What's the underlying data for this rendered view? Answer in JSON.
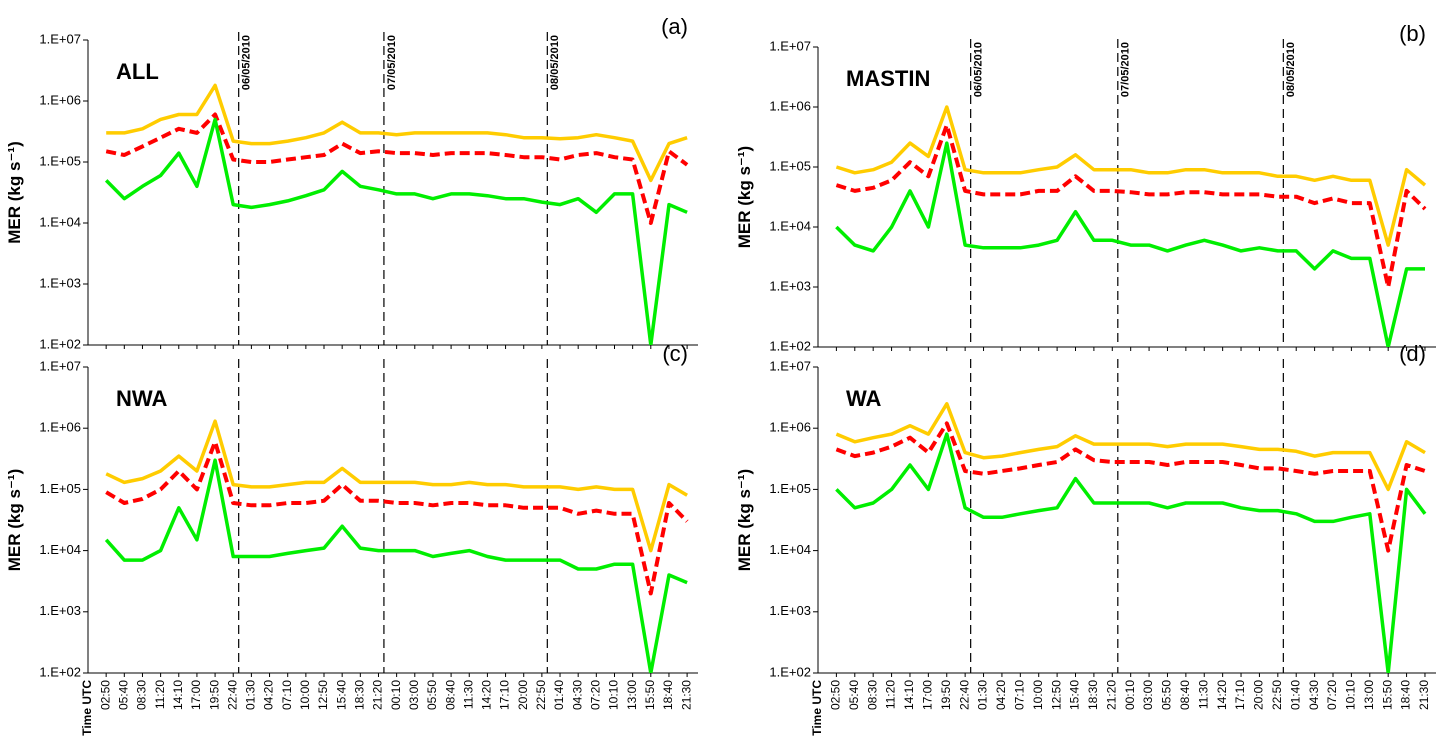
{
  "chart_data": [
    {
      "type": "line",
      "title": "(a)",
      "label": "ALL",
      "ylabel": "MER (kg s⁻¹)",
      "log_y": true,
      "ylim": [
        100,
        10000000
      ],
      "yticks": [
        {
          "value": 100,
          "label": "1.E+02"
        },
        {
          "value": 1000,
          "label": "1.E+03"
        },
        {
          "value": 10000,
          "label": "1.E+04"
        },
        {
          "value": 100000,
          "label": "1.E+05"
        },
        {
          "value": 1000000,
          "label": "1.E+06"
        },
        {
          "value": 10000000,
          "label": "1.E+07"
        }
      ],
      "date_lines": [
        {
          "label": "06/05/2010",
          "after": 7
        },
        {
          "label": "07/05/2010",
          "after": 15
        },
        {
          "label": "08/05/2010",
          "after": 24
        }
      ],
      "series": [
        {
          "color": "#ffcc00",
          "values": [
            300000.0,
            300000.0,
            350000.0,
            500000.0,
            600000.0,
            600000.0,
            1800000.0,
            220000.0,
            200000.0,
            200000.0,
            220000.0,
            250000.0,
            300000.0,
            450000.0,
            300000.0,
            300000.0,
            280000.0,
            300000.0,
            300000.0,
            300000.0,
            300000.0,
            300000.0,
            280000.0,
            250000.0,
            250000.0,
            240000.0,
            250000.0,
            280000.0,
            250000.0,
            220000.0,
            50000.0,
            200000.0,
            250000.0
          ]
        },
        {
          "color": "#ff0000",
          "dash": true,
          "values": [
            150000.0,
            130000.0,
            180000.0,
            250000.0,
            350000.0,
            300000.0,
            600000.0,
            110000.0,
            100000.0,
            100000.0,
            110000.0,
            120000.0,
            130000.0,
            200000.0,
            140000.0,
            150000.0,
            140000.0,
            140000.0,
            130000.0,
            140000.0,
            140000.0,
            140000.0,
            130000.0,
            120000.0,
            120000.0,
            110000.0,
            130000.0,
            140000.0,
            120000.0,
            110000.0,
            10000.0,
            150000.0,
            90000.0
          ]
        },
        {
          "color": "#00ee00",
          "values": [
            50000.0,
            25000.0,
            40000.0,
            60000.0,
            140000.0,
            40000.0,
            500000.0,
            20000.0,
            18000.0,
            20000.0,
            23000.0,
            28000.0,
            35000.0,
            70000.0,
            40000.0,
            35000.0,
            30000.0,
            30000.0,
            25000.0,
            30000.0,
            30000.0,
            28000.0,
            25000.0,
            25000.0,
            22000.0,
            20000.0,
            25000.0,
            15000.0,
            30000.0,
            30000.0,
            100,
            20000.0,
            15000.0
          ]
        }
      ]
    },
    {
      "type": "line",
      "title": "(b)",
      "label": "MASTIN",
      "ylabel": "MER (kg s⁻¹)",
      "log_y": true,
      "ylim": [
        100,
        10000000
      ],
      "yticks": [
        {
          "value": 100,
          "label": "1.E+02"
        },
        {
          "value": 1000,
          "label": "1.E+03"
        },
        {
          "value": 10000,
          "label": "1.E+04"
        },
        {
          "value": 100000,
          "label": "1.E+05"
        },
        {
          "value": 1000000,
          "label": "1.E+06"
        },
        {
          "value": 10000000,
          "label": "1.E+07"
        }
      ],
      "date_lines": [
        {
          "label": "06/05/2010",
          "after": 7
        },
        {
          "label": "07/05/2010",
          "after": 15
        },
        {
          "label": "08/05/2010",
          "after": 24
        }
      ],
      "series": [
        {
          "color": "#ffcc00",
          "values": [
            100000.0,
            80000.0,
            90000.0,
            120000.0,
            250000.0,
            150000.0,
            1000000.0,
            90000.0,
            80000.0,
            80000.0,
            80000.0,
            90000.0,
            100000.0,
            160000.0,
            90000.0,
            90000.0,
            90000.0,
            80000.0,
            80000.0,
            90000.0,
            90000.0,
            80000.0,
            80000.0,
            80000.0,
            70000.0,
            70000.0,
            60000.0,
            70000.0,
            60000.0,
            60000.0,
            5000.0,
            90000.0,
            50000.0
          ]
        },
        {
          "color": "#ff0000",
          "dash": true,
          "values": [
            50000.0,
            40000.0,
            45000.0,
            60000.0,
            120000.0,
            70000.0,
            500000.0,
            40000.0,
            35000.0,
            35000.0,
            35000.0,
            40000.0,
            40000.0,
            70000.0,
            40000.0,
            40000.0,
            38000.0,
            35000.0,
            35000.0,
            38000.0,
            38000.0,
            35000.0,
            35000.0,
            35000.0,
            32000.0,
            32000.0,
            25000.0,
            30000.0,
            25000.0,
            25000.0,
            1000.0,
            40000.0,
            20000.0
          ]
        },
        {
          "color": "#00ee00",
          "values": [
            10000.0,
            5000.0,
            4000.0,
            10000.0,
            40000.0,
            10000.0,
            250000.0,
            5000.0,
            4500.0,
            4500.0,
            4500.0,
            5000.0,
            6000.0,
            18000.0,
            6000.0,
            6000.0,
            5000.0,
            5000.0,
            4000.0,
            5000.0,
            6000.0,
            5000.0,
            4000.0,
            4500.0,
            4000.0,
            4000.0,
            2000.0,
            4000.0,
            3000.0,
            3000.0,
            100,
            2000.0,
            2000.0
          ]
        }
      ]
    },
    {
      "type": "line",
      "title": "(c)",
      "label": "NWA",
      "ylabel": "MER (kg s⁻¹)",
      "xlabel": "Time UTC",
      "log_y": true,
      "categories": [
        "02:50",
        "05:40",
        "08:30",
        "11:20",
        "14:10",
        "17:00",
        "19:50",
        "22:40",
        "01:30",
        "04:20",
        "07:10",
        "10:00",
        "12:50",
        "15:40",
        "18:30",
        "21:20",
        "00:10",
        "03:00",
        "05:50",
        "08:40",
        "11:30",
        "14:20",
        "17:10",
        "20:00",
        "22:50",
        "01:40",
        "04:30",
        "07:20",
        "10:10",
        "13:00",
        "15:50",
        "18:40",
        "21:30"
      ],
      "ylim": [
        100,
        10000000
      ],
      "yticks": [
        {
          "value": 100,
          "label": "1.E+02"
        },
        {
          "value": 1000,
          "label": "1.E+03"
        },
        {
          "value": 10000,
          "label": "1.E+04"
        },
        {
          "value": 100000,
          "label": "1.E+05"
        },
        {
          "value": 1000000,
          "label": "1.E+06"
        },
        {
          "value": 10000000,
          "label": "1.E+07"
        }
      ],
      "date_lines": [
        {
          "after": 7
        },
        {
          "after": 15
        },
        {
          "after": 24
        }
      ],
      "series": [
        {
          "color": "#ffcc00",
          "values": [
            180000.0,
            130000.0,
            150000.0,
            200000.0,
            350000.0,
            200000.0,
            1300000.0,
            120000.0,
            110000.0,
            110000.0,
            120000.0,
            130000.0,
            130000.0,
            220000.0,
            130000.0,
            130000.0,
            130000.0,
            130000.0,
            120000.0,
            120000.0,
            130000.0,
            120000.0,
            120000.0,
            110000.0,
            110000.0,
            110000.0,
            100000.0,
            110000.0,
            100000.0,
            100000.0,
            10000.0,
            120000.0,
            80000.0
          ]
        },
        {
          "color": "#ff0000",
          "dash": true,
          "values": [
            90000.0,
            60000.0,
            70000.0,
            100000.0,
            200000.0,
            100000.0,
            600000.0,
            60000.0,
            55000.0,
            55000.0,
            60000.0,
            60000.0,
            65000.0,
            120000.0,
            65000.0,
            65000.0,
            60000.0,
            60000.0,
            55000.0,
            60000.0,
            60000.0,
            55000.0,
            55000.0,
            50000.0,
            50000.0,
            50000.0,
            40000.0,
            45000.0,
            40000.0,
            40000.0,
            2000.0,
            60000.0,
            30000.0
          ]
        },
        {
          "color": "#00ee00",
          "values": [
            15000.0,
            7000.0,
            7000.0,
            10000.0,
            50000.0,
            15000.0,
            300000.0,
            8000.0,
            8000.0,
            8000.0,
            9000.0,
            10000.0,
            11000.0,
            25000.0,
            11000.0,
            10000.0,
            10000.0,
            10000.0,
            8000.0,
            9000.0,
            10000.0,
            8000.0,
            7000.0,
            7000.0,
            7000.0,
            7000.0,
            5000.0,
            5000.0,
            6000.0,
            6000.0,
            100,
            4000.0,
            3000.0
          ]
        }
      ]
    },
    {
      "type": "line",
      "title": "(d)",
      "label": "WA",
      "ylabel": "MER (kg s⁻¹)",
      "xlabel": "Time UTC",
      "log_y": true,
      "categories": [
        "02:50",
        "05:40",
        "08:30",
        "11:20",
        "14:10",
        "17:00",
        "19:50",
        "22:40",
        "01:30",
        "04:20",
        "07:10",
        "10:00",
        "12:50",
        "15:40",
        "18:30",
        "21:20",
        "00:10",
        "03:00",
        "05:50",
        "08:40",
        "11:30",
        "14:20",
        "17:10",
        "20:00",
        "22:50",
        "01:40",
        "04:30",
        "07:20",
        "10:10",
        "13:00",
        "15:50",
        "18:40",
        "21:30"
      ],
      "ylim": [
        100,
        10000000
      ],
      "yticks": [
        {
          "value": 100,
          "label": "1.E+02"
        },
        {
          "value": 1000,
          "label": "1.E+03"
        },
        {
          "value": 10000,
          "label": "1.E+04"
        },
        {
          "value": 100000,
          "label": "1.E+05"
        },
        {
          "value": 1000000,
          "label": "1.E+06"
        },
        {
          "value": 10000000,
          "label": "1.E+07"
        }
      ],
      "date_lines": [
        {
          "after": 7
        },
        {
          "after": 15
        },
        {
          "after": 24
        }
      ],
      "series": [
        {
          "color": "#ffcc00",
          "values": [
            800000.0,
            600000.0,
            700000.0,
            800000.0,
            1100000.0,
            800000.0,
            2500000.0,
            400000.0,
            330000.0,
            350000.0,
            400000.0,
            450000.0,
            500000.0,
            750000.0,
            550000.0,
            550000.0,
            550000.0,
            550000.0,
            500000.0,
            550000.0,
            550000.0,
            550000.0,
            500000.0,
            450000.0,
            450000.0,
            420000.0,
            350000.0,
            400000.0,
            400000.0,
            400000.0,
            100000.0,
            600000.0,
            400000.0
          ]
        },
        {
          "color": "#ff0000",
          "dash": true,
          "values": [
            450000.0,
            350000.0,
            400000.0,
            500000.0,
            700000.0,
            400000.0,
            1200000.0,
            200000.0,
            180000.0,
            200000.0,
            220000.0,
            250000.0,
            280000.0,
            450000.0,
            300000.0,
            280000.0,
            280000.0,
            280000.0,
            250000.0,
            280000.0,
            280000.0,
            280000.0,
            250000.0,
            220000.0,
            220000.0,
            200000.0,
            180000.0,
            200000.0,
            200000.0,
            200000.0,
            10000.0,
            250000.0,
            200000.0
          ]
        },
        {
          "color": "#00ee00",
          "values": [
            100000.0,
            50000.0,
            60000.0,
            100000.0,
            250000.0,
            100000.0,
            800000.0,
            50000.0,
            35000.0,
            35000.0,
            40000.0,
            45000.0,
            50000.0,
            150000.0,
            60000.0,
            60000.0,
            60000.0,
            60000.0,
            50000.0,
            60000.0,
            60000.0,
            60000.0,
            50000.0,
            45000.0,
            45000.0,
            40000.0,
            30000.0,
            30000.0,
            35000.0,
            40000.0,
            100,
            100000.0,
            40000.0
          ]
        }
      ]
    }
  ]
}
